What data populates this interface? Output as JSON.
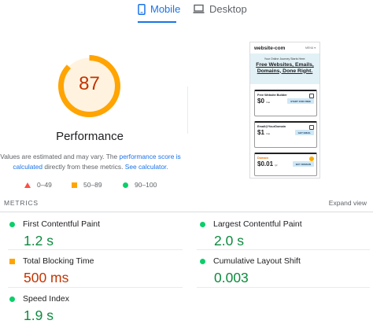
{
  "tabs": {
    "mobile": "Mobile",
    "desktop": "Desktop"
  },
  "score": {
    "value": "87",
    "fraction": 0.87,
    "title": "Performance",
    "color": "#ffa400"
  },
  "note": {
    "prefix": "Values are estimated and may vary. The ",
    "link1": "performance score is calculated",
    "middle": " directly from these metrics. ",
    "link2": "See calculator."
  },
  "legend": {
    "poor": "0–49",
    "average": "50–89",
    "good": "90–100"
  },
  "thumbnail": {
    "site_name": "website-com",
    "menu": "MENU ▾",
    "hero_small": "Your Online Journey Starts Here:",
    "hero_big": "Free Websites, Emails, Domains, Done Right.",
    "cards": [
      {
        "name": "Free Website Builder",
        "price": "$0",
        "unit": "/mo",
        "button": "START FOR FREE"
      },
      {
        "name": "Email@YourDomain",
        "price": "$1",
        "unit": "/mo",
        "button": "GET EMAIL"
      },
      {
        "name": "Domain",
        "price": "$0.01",
        "unit": "/yr",
        "button": "BUY DOMAIN"
      }
    ]
  },
  "metrics": {
    "header": "METRICS",
    "expand": "Expand view",
    "items": [
      {
        "label": "First Contentful Paint",
        "value": "1.2 s",
        "status": "good"
      },
      {
        "label": "Largest Contentful Paint",
        "value": "2.0 s",
        "status": "good"
      },
      {
        "label": "Total Blocking Time",
        "value": "500 ms",
        "status": "average"
      },
      {
        "label": "Cumulative Layout Shift",
        "value": "0.003",
        "status": "good"
      },
      {
        "label": "Speed Index",
        "value": "1.9 s",
        "status": "good"
      }
    ]
  }
}
